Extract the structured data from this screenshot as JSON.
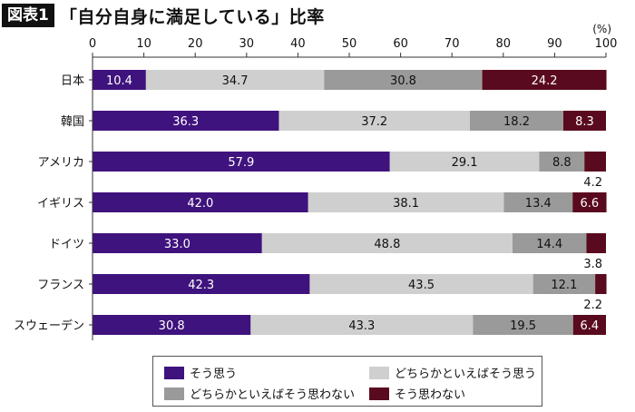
{
  "header": {
    "figure_label": "図表1",
    "title": "「自分自身に満足している」比率"
  },
  "chart_data": {
    "type": "bar",
    "orientation": "horizontal",
    "stacked": true,
    "unit": "(%)",
    "xlim": [
      0,
      100
    ],
    "xticks": [
      0,
      10,
      20,
      30,
      40,
      50,
      60,
      70,
      80,
      90,
      100
    ],
    "categories": [
      "日本",
      "韓国",
      "アメリカ",
      "イギリス",
      "ドイツ",
      "フランス",
      "スウェーデン"
    ],
    "series": [
      {
        "name": "そう思う",
        "color": "#3f137d",
        "values": [
          10.4,
          36.3,
          57.9,
          42.0,
          33.0,
          42.3,
          30.8
        ],
        "labels": [
          "10.4",
          "36.3",
          "57.9",
          "42.0",
          "33.0",
          "42.3",
          "30.8"
        ]
      },
      {
        "name": "どちらかといえばそう思う",
        "color": "#cfcfcf",
        "values": [
          34.7,
          37.2,
          29.1,
          38.1,
          48.8,
          43.5,
          43.3
        ],
        "labels": [
          "34.7",
          "37.2",
          "29.1",
          "38.1",
          "48.8",
          "43.5",
          "43.3"
        ]
      },
      {
        "name": "どちらかといえばそう思わない",
        "color": "#9a9a9a",
        "values": [
          30.8,
          18.2,
          8.8,
          13.4,
          14.4,
          12.1,
          19.5
        ],
        "labels": [
          "30.8",
          "18.2",
          "8.8",
          "13.4",
          "14.4",
          "12.1",
          "19.5"
        ]
      },
      {
        "name": "そう思わない",
        "color": "#5a0a1e",
        "values": [
          24.2,
          8.3,
          4.2,
          6.6,
          3.8,
          2.2,
          6.4
        ],
        "labels": [
          "24.2",
          "8.3",
          "4.2",
          "6.6",
          "3.8",
          "2.2",
          "6.4"
        ],
        "label_below": [
          false,
          false,
          true,
          false,
          true,
          true,
          false
        ]
      }
    ],
    "legend": "bottom"
  }
}
